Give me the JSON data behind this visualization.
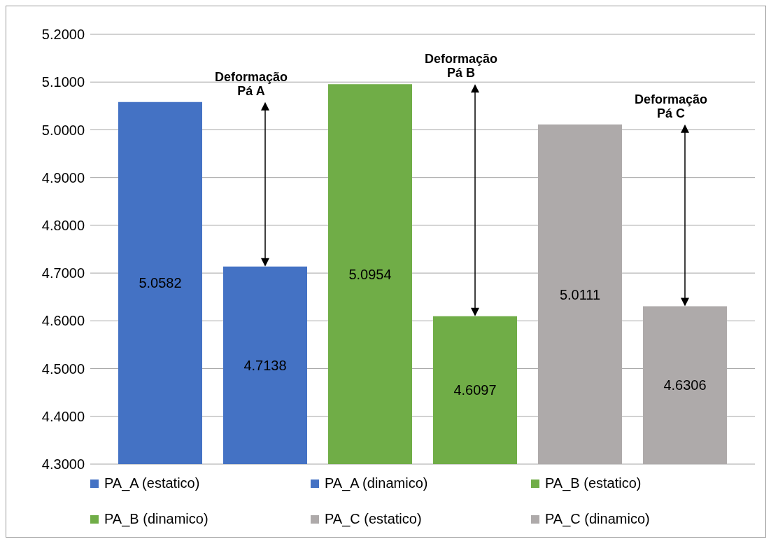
{
  "chart_data": {
    "type": "bar",
    "categories": [
      null
    ],
    "series": [
      {
        "name": "PA_A (estatico)",
        "color": "#4472c4",
        "values": [
          5.0582
        ]
      },
      {
        "name": "PA_A (dinamico)",
        "color": "#4472c4",
        "values": [
          4.7138
        ]
      },
      {
        "name": "PA_B (estatico)",
        "color": "#70ad47",
        "values": [
          5.0954
        ]
      },
      {
        "name": "PA_B (dinamico)",
        "color": "#70ad47",
        "values": [
          4.6097
        ]
      },
      {
        "name": "PA_C (estatico)",
        "color": "#aeaaaa",
        "values": [
          5.0111
        ]
      },
      {
        "name": "PA_C (dinamico)",
        "color": "#aeaaaa",
        "values": [
          4.6306
        ]
      }
    ],
    "ylim": [
      4.3,
      5.2
    ],
    "yticks": [
      {
        "value": 4.3,
        "label": "4.3000"
      },
      {
        "value": 4.4,
        "label": "4.4000"
      },
      {
        "value": 4.5,
        "label": "4.5000"
      },
      {
        "value": 4.6,
        "label": "4.6000"
      },
      {
        "value": 4.7,
        "label": "4.7000"
      },
      {
        "value": 4.8,
        "label": "4.8000"
      },
      {
        "value": 4.9,
        "label": "4.9000"
      },
      {
        "value": 5.0,
        "label": "5.0000"
      },
      {
        "value": 5.1,
        "label": "5.1000"
      },
      {
        "value": 5.2,
        "label": "5.2000"
      }
    ],
    "grid": "y",
    "legend": "bottom",
    "data_labels": true,
    "annotations": [
      "Deformação\nPá A",
      "Deformação\nPá B",
      "Deformação\nPá C"
    ]
  }
}
